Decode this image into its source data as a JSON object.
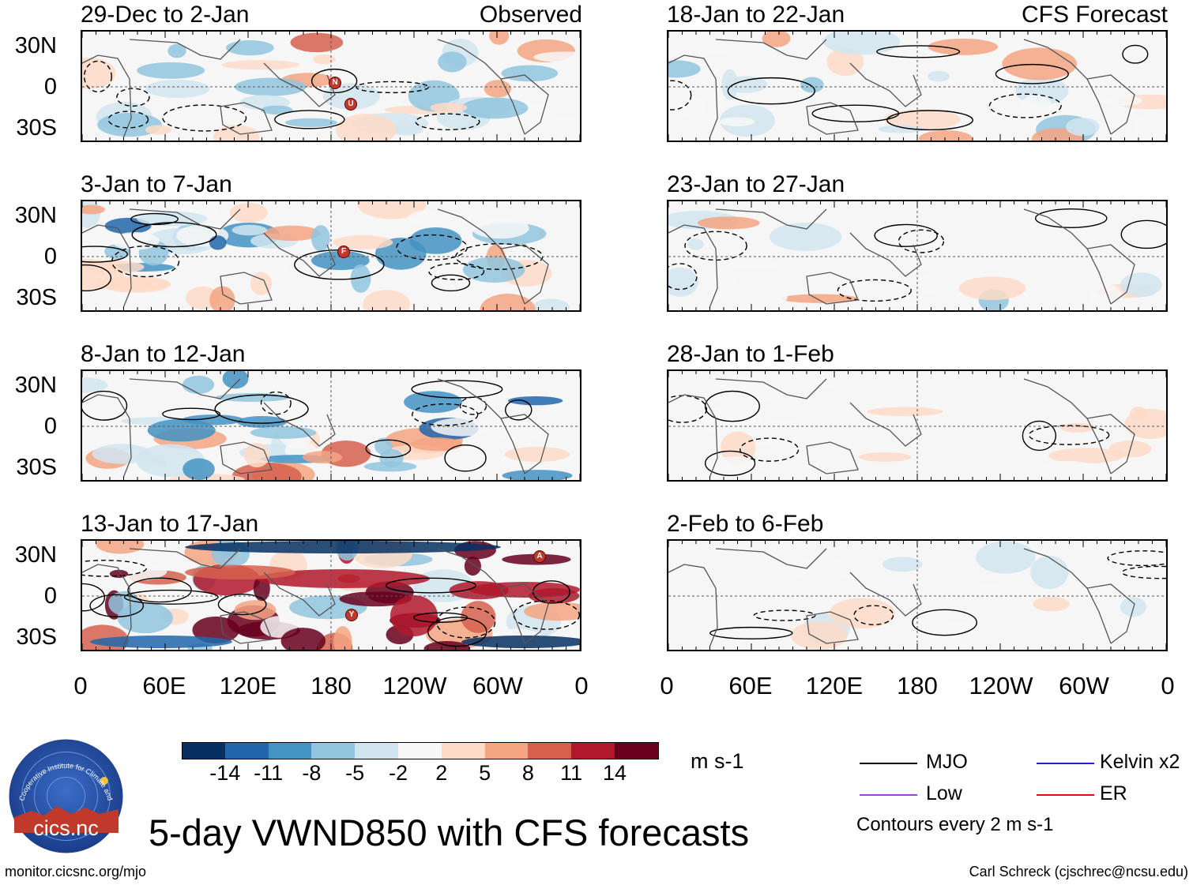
{
  "map_labels": {
    "observed_label": "Observed",
    "forecast_label": "CFS Forecast",
    "lat_labels": [
      "30N",
      "0",
      "30S"
    ],
    "lon_labels": [
      "0",
      "60E",
      "120E",
      "180",
      "120W",
      "60W",
      "0"
    ]
  },
  "panels_left": [
    {
      "title": "29-Dec to 2-Jan"
    },
    {
      "title": "3-Jan to 7-Jan"
    },
    {
      "title": "8-Jan to 12-Jan"
    },
    {
      "title": "13-Jan to 17-Jan"
    }
  ],
  "panels_right": [
    {
      "title": "18-Jan to 22-Jan"
    },
    {
      "title": "23-Jan to 27-Jan"
    },
    {
      "title": "28-Jan to 1-Feb"
    },
    {
      "title": "2-Feb to 6-Feb"
    }
  ],
  "storm_markers": [
    "N",
    "U",
    "F",
    "A",
    "Y"
  ],
  "colorbar": {
    "unit": "m s-1",
    "labels": [
      "-14",
      "-11",
      "-8",
      "-5",
      "-2",
      "2",
      "5",
      "8",
      "11",
      "14"
    ],
    "colors": [
      "#053061",
      "#2166ac",
      "#4393c3",
      "#92c5de",
      "#d1e5f0",
      "#f7f7f7",
      "#fddbc7",
      "#f4a582",
      "#d6604d",
      "#b2182b",
      "#67001f"
    ]
  },
  "legend": {
    "mjo": "MJO",
    "kelvin": "Kelvin x2",
    "low": "Low",
    "er": "ER",
    "contours_note": "Contours every 2 m s-1",
    "colors": {
      "mjo": "#000000",
      "kelvin": "#2222cc",
      "low": "#a040e0",
      "er": "#e01010"
    }
  },
  "footer": {
    "main_title": "5-day VWND850 with CFS forecasts",
    "website": "monitor.cicsnc.org/mjo",
    "author": "Carl Schreck (cjschrec@ncsu.edu)",
    "logo_text": "cics.nc",
    "logo_ring_text": "Cooperative Institute for Climate and Satellites"
  }
}
